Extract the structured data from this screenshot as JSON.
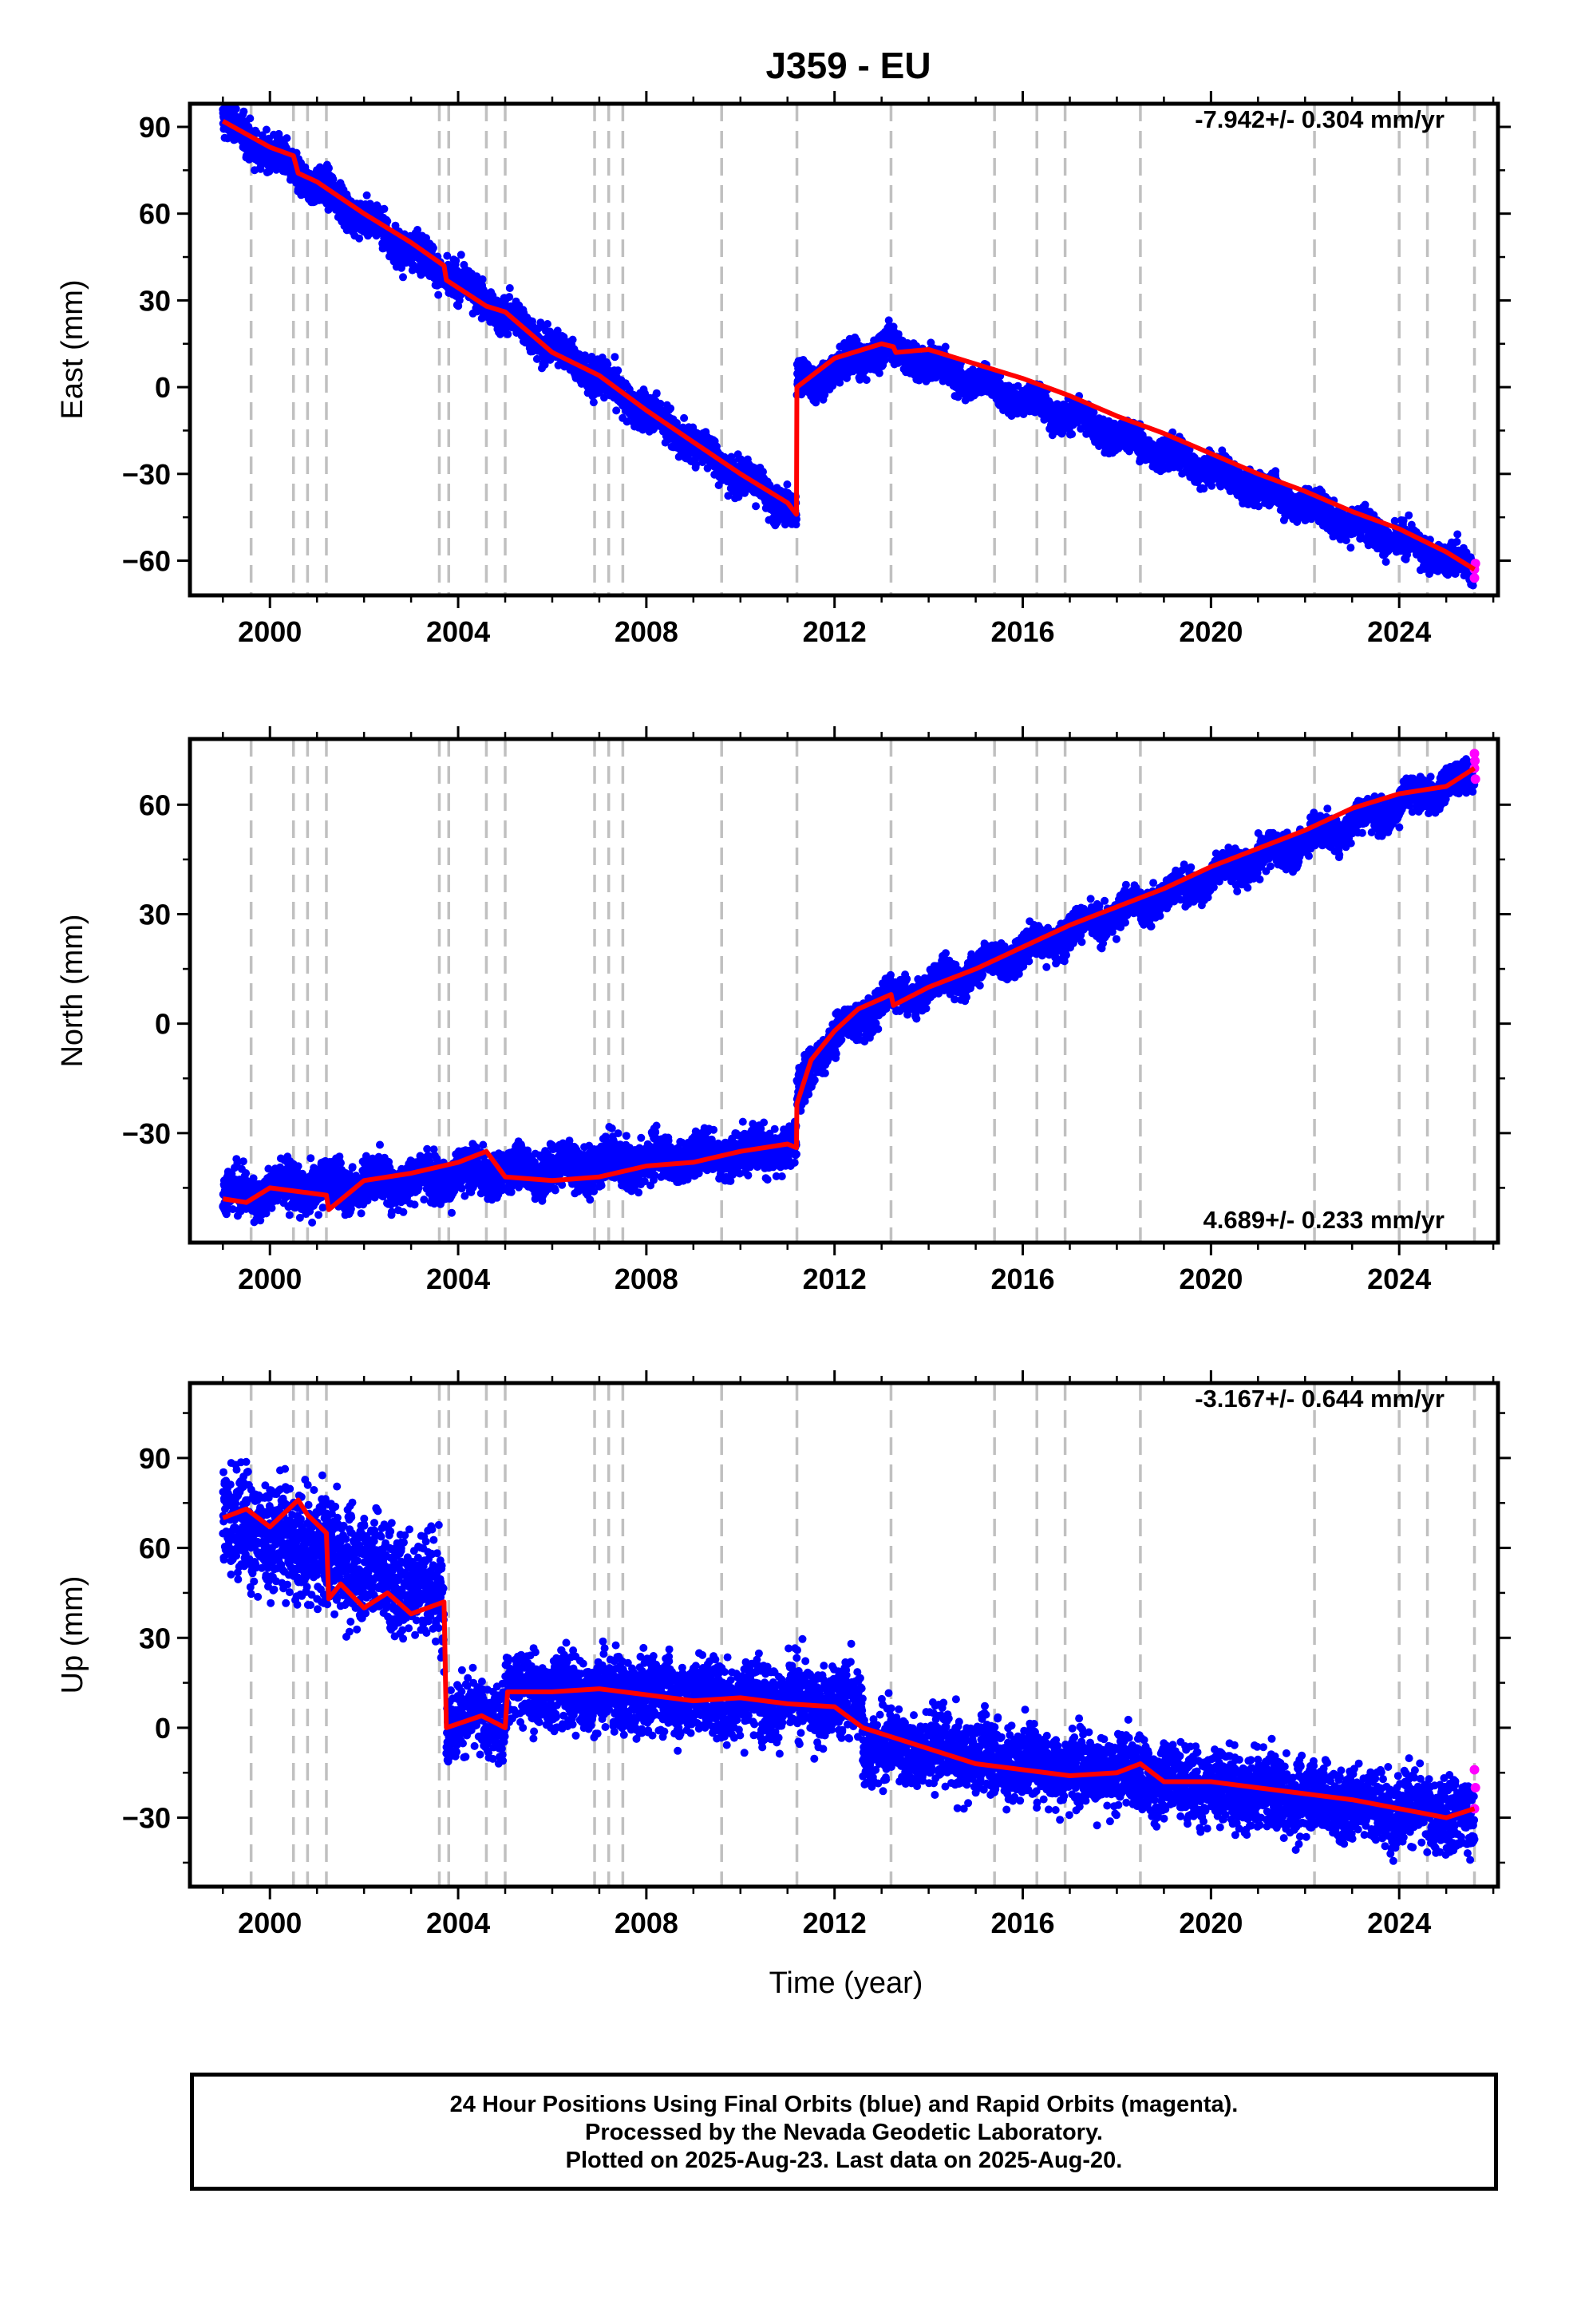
{
  "title": "J359 - EU",
  "xlabel": "Time (year)",
  "x_tick_labels": [
    "2000",
    "2004",
    "2008",
    "2012",
    "2016",
    "2020",
    "2024"
  ],
  "colors": {
    "final_orbits": "#0000ff",
    "rapid_orbits": "#ff00ff",
    "model": "#ff0000",
    "event_lines": "#c0c0c0"
  },
  "caption": {
    "line1": "24 Hour Positions Using Final Orbits (blue) and Rapid Orbits (magenta).",
    "line2": "Processed by the Nevada Geodetic Laboratory.",
    "line3": "Plotted on 2025-Aug-23. Last data on 2025-Aug-20."
  },
  "chart_data": [
    {
      "type": "scatter",
      "panel": "east",
      "ylabel": "East (mm)",
      "rate_label": "-7.942+/- 0.304 mm/yr",
      "xlim": [
        1998.3,
        2026.1
      ],
      "ylim": [
        -72,
        98
      ],
      "y_ticks": [
        -60,
        -30,
        0,
        30,
        60,
        90
      ],
      "y_tick_labels": [
        "−60",
        "−30",
        "0",
        "30",
        "60",
        "90"
      ],
      "minor_y_ticks": [
        -45,
        -15,
        15,
        45,
        75
      ],
      "event_lines": [
        1999.6,
        2000.5,
        2000.8,
        2001.2,
        2003.6,
        2003.8,
        2004.6,
        2005.0,
        2006.9,
        2007.2,
        2007.5,
        2009.6,
        2011.2,
        2013.2,
        2015.4,
        2016.3,
        2016.9,
        2018.5,
        2022.2,
        2024.0,
        2024.6,
        2025.6
      ],
      "model": [
        [
          1999.0,
          92
        ],
        [
          2000.0,
          83
        ],
        [
          2000.5,
          80
        ],
        [
          2000.6,
          74
        ],
        [
          2001.0,
          71
        ],
        [
          2002.0,
          60
        ],
        [
          2003.0,
          50
        ],
        [
          2003.7,
          42
        ],
        [
          2003.75,
          37
        ],
        [
          2004.6,
          28
        ],
        [
          2005.0,
          26
        ],
        [
          2006.0,
          12
        ],
        [
          2007.0,
          4
        ],
        [
          2008.0,
          -8
        ],
        [
          2009.0,
          -19
        ],
        [
          2010.0,
          -30
        ],
        [
          2011.0,
          -40
        ],
        [
          2011.19,
          -44
        ],
        [
          2011.2,
          0
        ],
        [
          2012.0,
          10
        ],
        [
          2013.0,
          15
        ],
        [
          2013.25,
          14
        ],
        [
          2013.3,
          12
        ],
        [
          2014.0,
          13
        ],
        [
          2015.0,
          8
        ],
        [
          2016.0,
          3
        ],
        [
          2017.0,
          -3
        ],
        [
          2018.0,
          -10
        ],
        [
          2019.0,
          -16
        ],
        [
          2020.0,
          -23
        ],
        [
          2021.0,
          -30
        ],
        [
          2022.0,
          -36
        ],
        [
          2023.0,
          -43
        ],
        [
          2024.0,
          -49
        ],
        [
          2025.0,
          -57
        ],
        [
          2025.6,
          -63
        ]
      ],
      "points": {
        "segments": [
          {
            "start": 1999.0,
            "end": 2011.19,
            "y0": 92,
            "y1": -44,
            "scatter": 3.0
          },
          {
            "start": 2011.2,
            "end": 2013.2,
            "y0": 0,
            "y1": 15,
            "scatter": 3.0
          },
          {
            "start": 2013.2,
            "end": 2025.6,
            "y0": 13,
            "y1": -63,
            "scatter": 2.6
          }
        ],
        "rapid": [
          [
            2025.6,
            -63
          ],
          [
            2025.6,
            -66
          ],
          [
            2025.62,
            -61
          ]
        ]
      }
    },
    {
      "type": "scatter",
      "panel": "north",
      "ylabel": "North (mm)",
      "rate_label": "4.689+/- 0.233 mm/yr",
      "xlim": [
        1998.3,
        2026.1
      ],
      "ylim": [
        -60,
        78
      ],
      "y_ticks": [
        -30,
        0,
        30,
        60
      ],
      "y_tick_labels": [
        "−30",
        "0",
        "30",
        "60"
      ],
      "minor_y_ticks": [
        -45,
        -15,
        15,
        45
      ],
      "event_lines": [
        1999.6,
        2000.5,
        2000.8,
        2001.2,
        2003.6,
        2003.8,
        2004.6,
        2005.0,
        2006.9,
        2007.2,
        2007.5,
        2009.6,
        2011.2,
        2013.2,
        2015.4,
        2016.3,
        2016.9,
        2018.5,
        2022.2,
        2024.0,
        2024.6,
        2025.6
      ],
      "model": [
        [
          1999.0,
          -48
        ],
        [
          1999.5,
          -49
        ],
        [
          2000.0,
          -45
        ],
        [
          2000.6,
          -46
        ],
        [
          2001.2,
          -47
        ],
        [
          2001.25,
          -51
        ],
        [
          2002.0,
          -43
        ],
        [
          2003.0,
          -41
        ],
        [
          2004.0,
          -38
        ],
        [
          2004.6,
          -35
        ],
        [
          2005.0,
          -42
        ],
        [
          2006.0,
          -43
        ],
        [
          2007.0,
          -42
        ],
        [
          2008.0,
          -39
        ],
        [
          2009.0,
          -38
        ],
        [
          2010.0,
          -35
        ],
        [
          2011.0,
          -33
        ],
        [
          2011.19,
          -34
        ],
        [
          2011.2,
          -22
        ],
        [
          2011.5,
          -10
        ],
        [
          2012.0,
          -2
        ],
        [
          2012.5,
          4
        ],
        [
          2013.2,
          8
        ],
        [
          2013.25,
          5
        ],
        [
          2014.0,
          10
        ],
        [
          2015.0,
          15
        ],
        [
          2016.0,
          21
        ],
        [
          2017.0,
          27
        ],
        [
          2018.0,
          32
        ],
        [
          2019.0,
          37
        ],
        [
          2020.0,
          43
        ],
        [
          2021.0,
          48
        ],
        [
          2022.0,
          53
        ],
        [
          2023.0,
          59
        ],
        [
          2024.0,
          63
        ],
        [
          2025.0,
          65
        ],
        [
          2025.6,
          70
        ]
      ],
      "points": {
        "segments": [
          {
            "start": 1999.0,
            "end": 2011.19,
            "y0": -47,
            "y1": -34,
            "scatter": 3.0
          },
          {
            "start": 2011.2,
            "end": 2011.6,
            "y0": -22,
            "y1": -8,
            "scatter": 3.0
          },
          {
            "start": 2011.6,
            "end": 2013.2,
            "y0": -8,
            "y1": 8,
            "scatter": 2.4
          },
          {
            "start": 2013.2,
            "end": 2025.6,
            "y0": 6,
            "y1": 68,
            "scatter": 2.2
          }
        ],
        "rapid": [
          [
            2025.6,
            70
          ],
          [
            2025.6,
            74
          ],
          [
            2025.62,
            67
          ],
          [
            2025.61,
            72
          ]
        ]
      }
    },
    {
      "type": "scatter",
      "panel": "up",
      "ylabel": "Up (mm)",
      "rate_label": "-3.167+/- 0.644 mm/yr",
      "xlim": [
        1998.3,
        2026.1
      ],
      "ylim": [
        -53,
        115
      ],
      "y_ticks": [
        -30,
        0,
        30,
        60,
        90
      ],
      "y_tick_labels": [
        "−30",
        "0",
        "30",
        "60",
        "90"
      ],
      "minor_y_ticks": [
        -45,
        -15,
        15,
        45,
        75,
        105
      ],
      "event_lines": [
        1999.6,
        2000.5,
        2000.8,
        2001.2,
        2003.6,
        2003.8,
        2004.6,
        2005.0,
        2006.9,
        2007.2,
        2007.5,
        2009.6,
        2011.2,
        2013.2,
        2015.4,
        2016.3,
        2016.9,
        2018.5,
        2022.2,
        2024.0,
        2024.6,
        2025.6
      ],
      "model": [
        [
          1999.0,
          70
        ],
        [
          1999.5,
          73
        ],
        [
          2000.0,
          67
        ],
        [
          2000.6,
          76
        ],
        [
          2000.8,
          71
        ],
        [
          2001.2,
          65
        ],
        [
          2001.25,
          43
        ],
        [
          2001.5,
          48
        ],
        [
          2002.0,
          40
        ],
        [
          2002.5,
          45
        ],
        [
          2003.0,
          38
        ],
        [
          2003.7,
          42
        ],
        [
          2003.75,
          0
        ],
        [
          2004.5,
          4
        ],
        [
          2005.0,
          0
        ],
        [
          2005.05,
          12
        ],
        [
          2006.0,
          12
        ],
        [
          2007.0,
          13
        ],
        [
          2008.0,
          11
        ],
        [
          2009.0,
          9
        ],
        [
          2010.0,
          10
        ],
        [
          2011.0,
          8
        ],
        [
          2012.0,
          7
        ],
        [
          2012.6,
          0
        ],
        [
          2013.2,
          -3
        ],
        [
          2014.0,
          -7
        ],
        [
          2015.0,
          -12
        ],
        [
          2016.0,
          -14
        ],
        [
          2017.0,
          -16
        ],
        [
          2018.0,
          -15
        ],
        [
          2018.5,
          -12
        ],
        [
          2019.0,
          -18
        ],
        [
          2020.0,
          -18
        ],
        [
          2021.0,
          -20
        ],
        [
          2022.0,
          -22
        ],
        [
          2023.0,
          -24
        ],
        [
          2024.0,
          -27
        ],
        [
          2025.0,
          -30
        ],
        [
          2025.6,
          -27
        ]
      ],
      "points": {
        "segments": [
          {
            "start": 1999.0,
            "end": 2003.7,
            "y0": 70,
            "y1": 45,
            "scatter": 9.0
          },
          {
            "start": 2003.75,
            "end": 2005.0,
            "y0": 3,
            "y1": 3,
            "scatter": 6.0
          },
          {
            "start": 2005.0,
            "end": 2012.6,
            "y0": 13,
            "y1": 8,
            "scatter": 6.0
          },
          {
            "start": 2012.6,
            "end": 2025.6,
            "y0": -5,
            "y1": -30,
            "scatter": 6.0
          }
        ],
        "rapid": [
          [
            2025.6,
            -27
          ],
          [
            2025.6,
            -14
          ],
          [
            2025.62,
            -20
          ]
        ]
      }
    }
  ]
}
